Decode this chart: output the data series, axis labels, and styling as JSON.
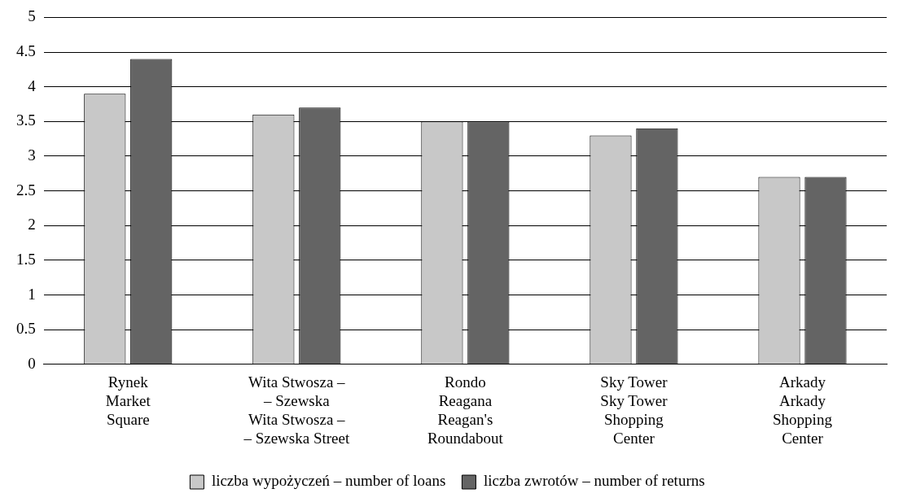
{
  "chart_data": {
    "type": "bar",
    "categories": [
      "Rynek\nMarket\nSquare",
      "Wita Stwosza –\n– Szewska\nWita Stwosza –\n– Szewska Street",
      "Rondo\nReagana\nReagan's\nRoundabout",
      "Sky Tower\nSky Tower\nShopping\nCenter",
      "Arkady\nArkady\nShopping\nCenter"
    ],
    "series": [
      {
        "name": "liczba wypożyczeń – number of loans",
        "color": "#c8c8c8",
        "values": [
          3.9,
          3.6,
          3.5,
          3.3,
          2.7
        ]
      },
      {
        "name": "liczba zwrotów – number of returns",
        "color": "#646464",
        "values": [
          4.4,
          3.7,
          3.5,
          3.4,
          2.7
        ]
      }
    ],
    "ylim": [
      0,
      5
    ],
    "yticks": [
      0,
      0.5,
      1,
      1.5,
      2,
      2.5,
      3,
      3.5,
      4,
      4.5,
      5
    ],
    "grid": "y",
    "legend": "bottom"
  }
}
